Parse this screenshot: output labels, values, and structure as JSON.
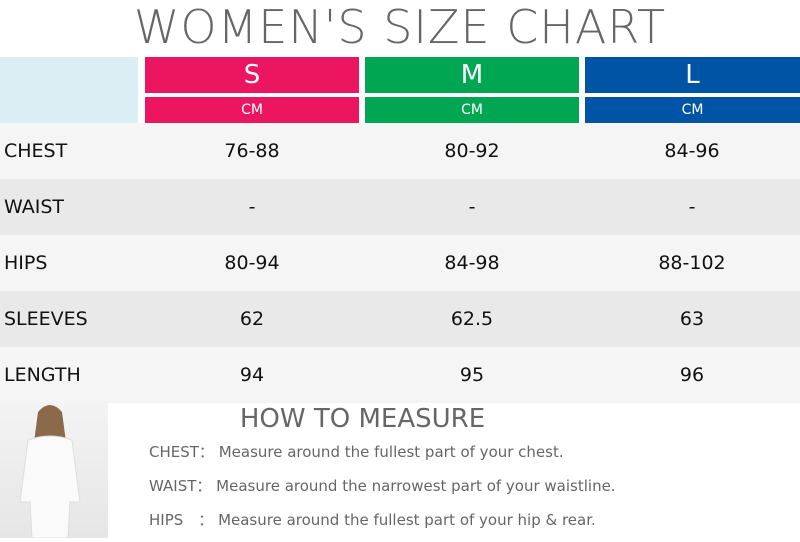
{
  "title": "WOMEN'S SIZE CHART",
  "sizes": [
    {
      "label": "S",
      "unit": "CM",
      "color": "#ec1660"
    },
    {
      "label": "M",
      "unit": "CM",
      "color": "#00a651"
    },
    {
      "label": "L",
      "unit": "CM",
      "color": "#0054a6"
    }
  ],
  "rows": [
    {
      "label": "CHEST",
      "values": [
        "76-88",
        "80-92",
        "84-96"
      ]
    },
    {
      "label": "WAIST",
      "values": [
        "-",
        "-",
        "-"
      ]
    },
    {
      "label": "HIPS",
      "values": [
        "80-94",
        "84-98",
        "88-102"
      ]
    },
    {
      "label": "SLEEVES",
      "values": [
        "62",
        "62.5",
        "63"
      ]
    },
    {
      "label": "LENGTH",
      "values": [
        "94",
        "95",
        "96"
      ]
    }
  ],
  "how_to": {
    "title": "HOW TO MEASURE",
    "tips": [
      {
        "label": "CHEST：",
        "text": "Measure around the fullest part of your chest."
      },
      {
        "label": "WAIST：",
        "text": "Measure around the narrowest part of your waistline."
      },
      {
        "label": "HIPS　：",
        "text": "Measure around the fullest part of your hip & rear."
      }
    ]
  }
}
